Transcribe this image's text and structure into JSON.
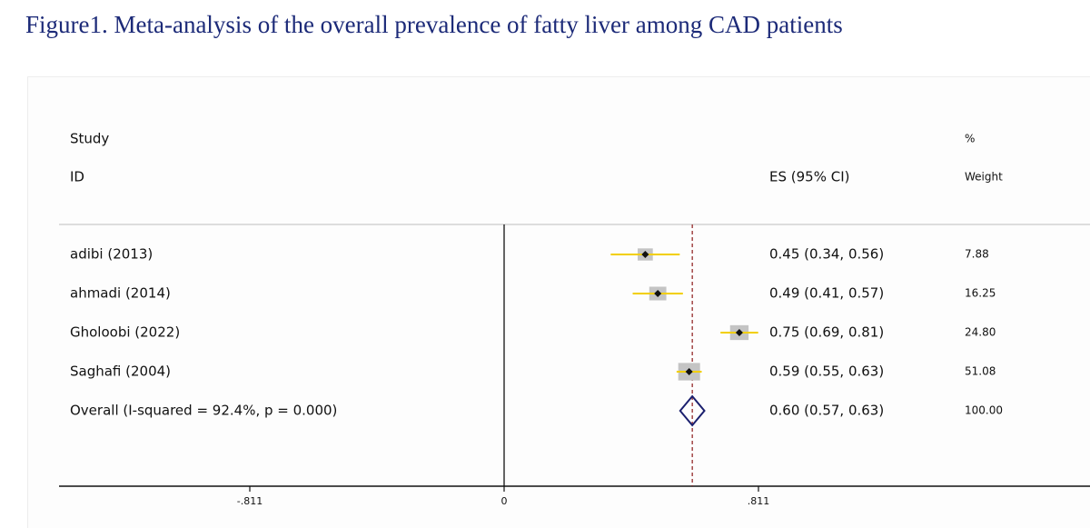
{
  "caption": "Figure1. Meta-analysis of the overall prevalence of fatty liver among CAD patients",
  "chart_data": {
    "type": "forest",
    "headers": {
      "study_line1": "Study",
      "study_line2": "ID",
      "es": "ES (95% CI)",
      "weight_line1": "%",
      "weight_line2": "Weight"
    },
    "studies": [
      {
        "label": "adibi (2013)",
        "es": 0.45,
        "lo": 0.34,
        "hi": 0.56,
        "es_text": "0.45 (0.34, 0.56)",
        "weight": 7.88,
        "weight_text": "7.88"
      },
      {
        "label": "ahmadi (2014)",
        "es": 0.49,
        "lo": 0.41,
        "hi": 0.57,
        "es_text": "0.49 (0.41, 0.57)",
        "weight": 16.25,
        "weight_text": "16.25"
      },
      {
        "label": "Gholoobi (2022)",
        "es": 0.75,
        "lo": 0.69,
        "hi": 0.81,
        "es_text": "0.75 (0.69, 0.81)",
        "weight": 24.8,
        "weight_text": "24.80"
      },
      {
        "label": "Saghafi (2004)",
        "es": 0.59,
        "lo": 0.55,
        "hi": 0.63,
        "es_text": "0.59 (0.55, 0.63)",
        "weight": 51.08,
        "weight_text": "51.08"
      }
    ],
    "overall": {
      "label": "Overall  (I-squared = 92.4%, p = 0.000)",
      "es": 0.6,
      "lo": 0.57,
      "hi": 0.63,
      "es_text": "0.60 (0.57, 0.63)",
      "weight": 100.0,
      "weight_text": "100.00"
    },
    "x_ticks": [
      {
        "value": -0.811,
        "label": "-.811"
      },
      {
        "value": 0,
        "label": "0"
      },
      {
        "value": 0.811,
        "label": ".811"
      }
    ],
    "xlim": [
      -1.12,
      1.55
    ],
    "null_line": 0,
    "colors": {
      "ci_line": "#f2cf00",
      "weight_box": "#c4c4c4",
      "point": "#111111",
      "diamond": "#1a1f6e",
      "overall_line": "#8b1a1a",
      "header_rule": "#bdbdbd",
      "axis": "#111111"
    }
  }
}
